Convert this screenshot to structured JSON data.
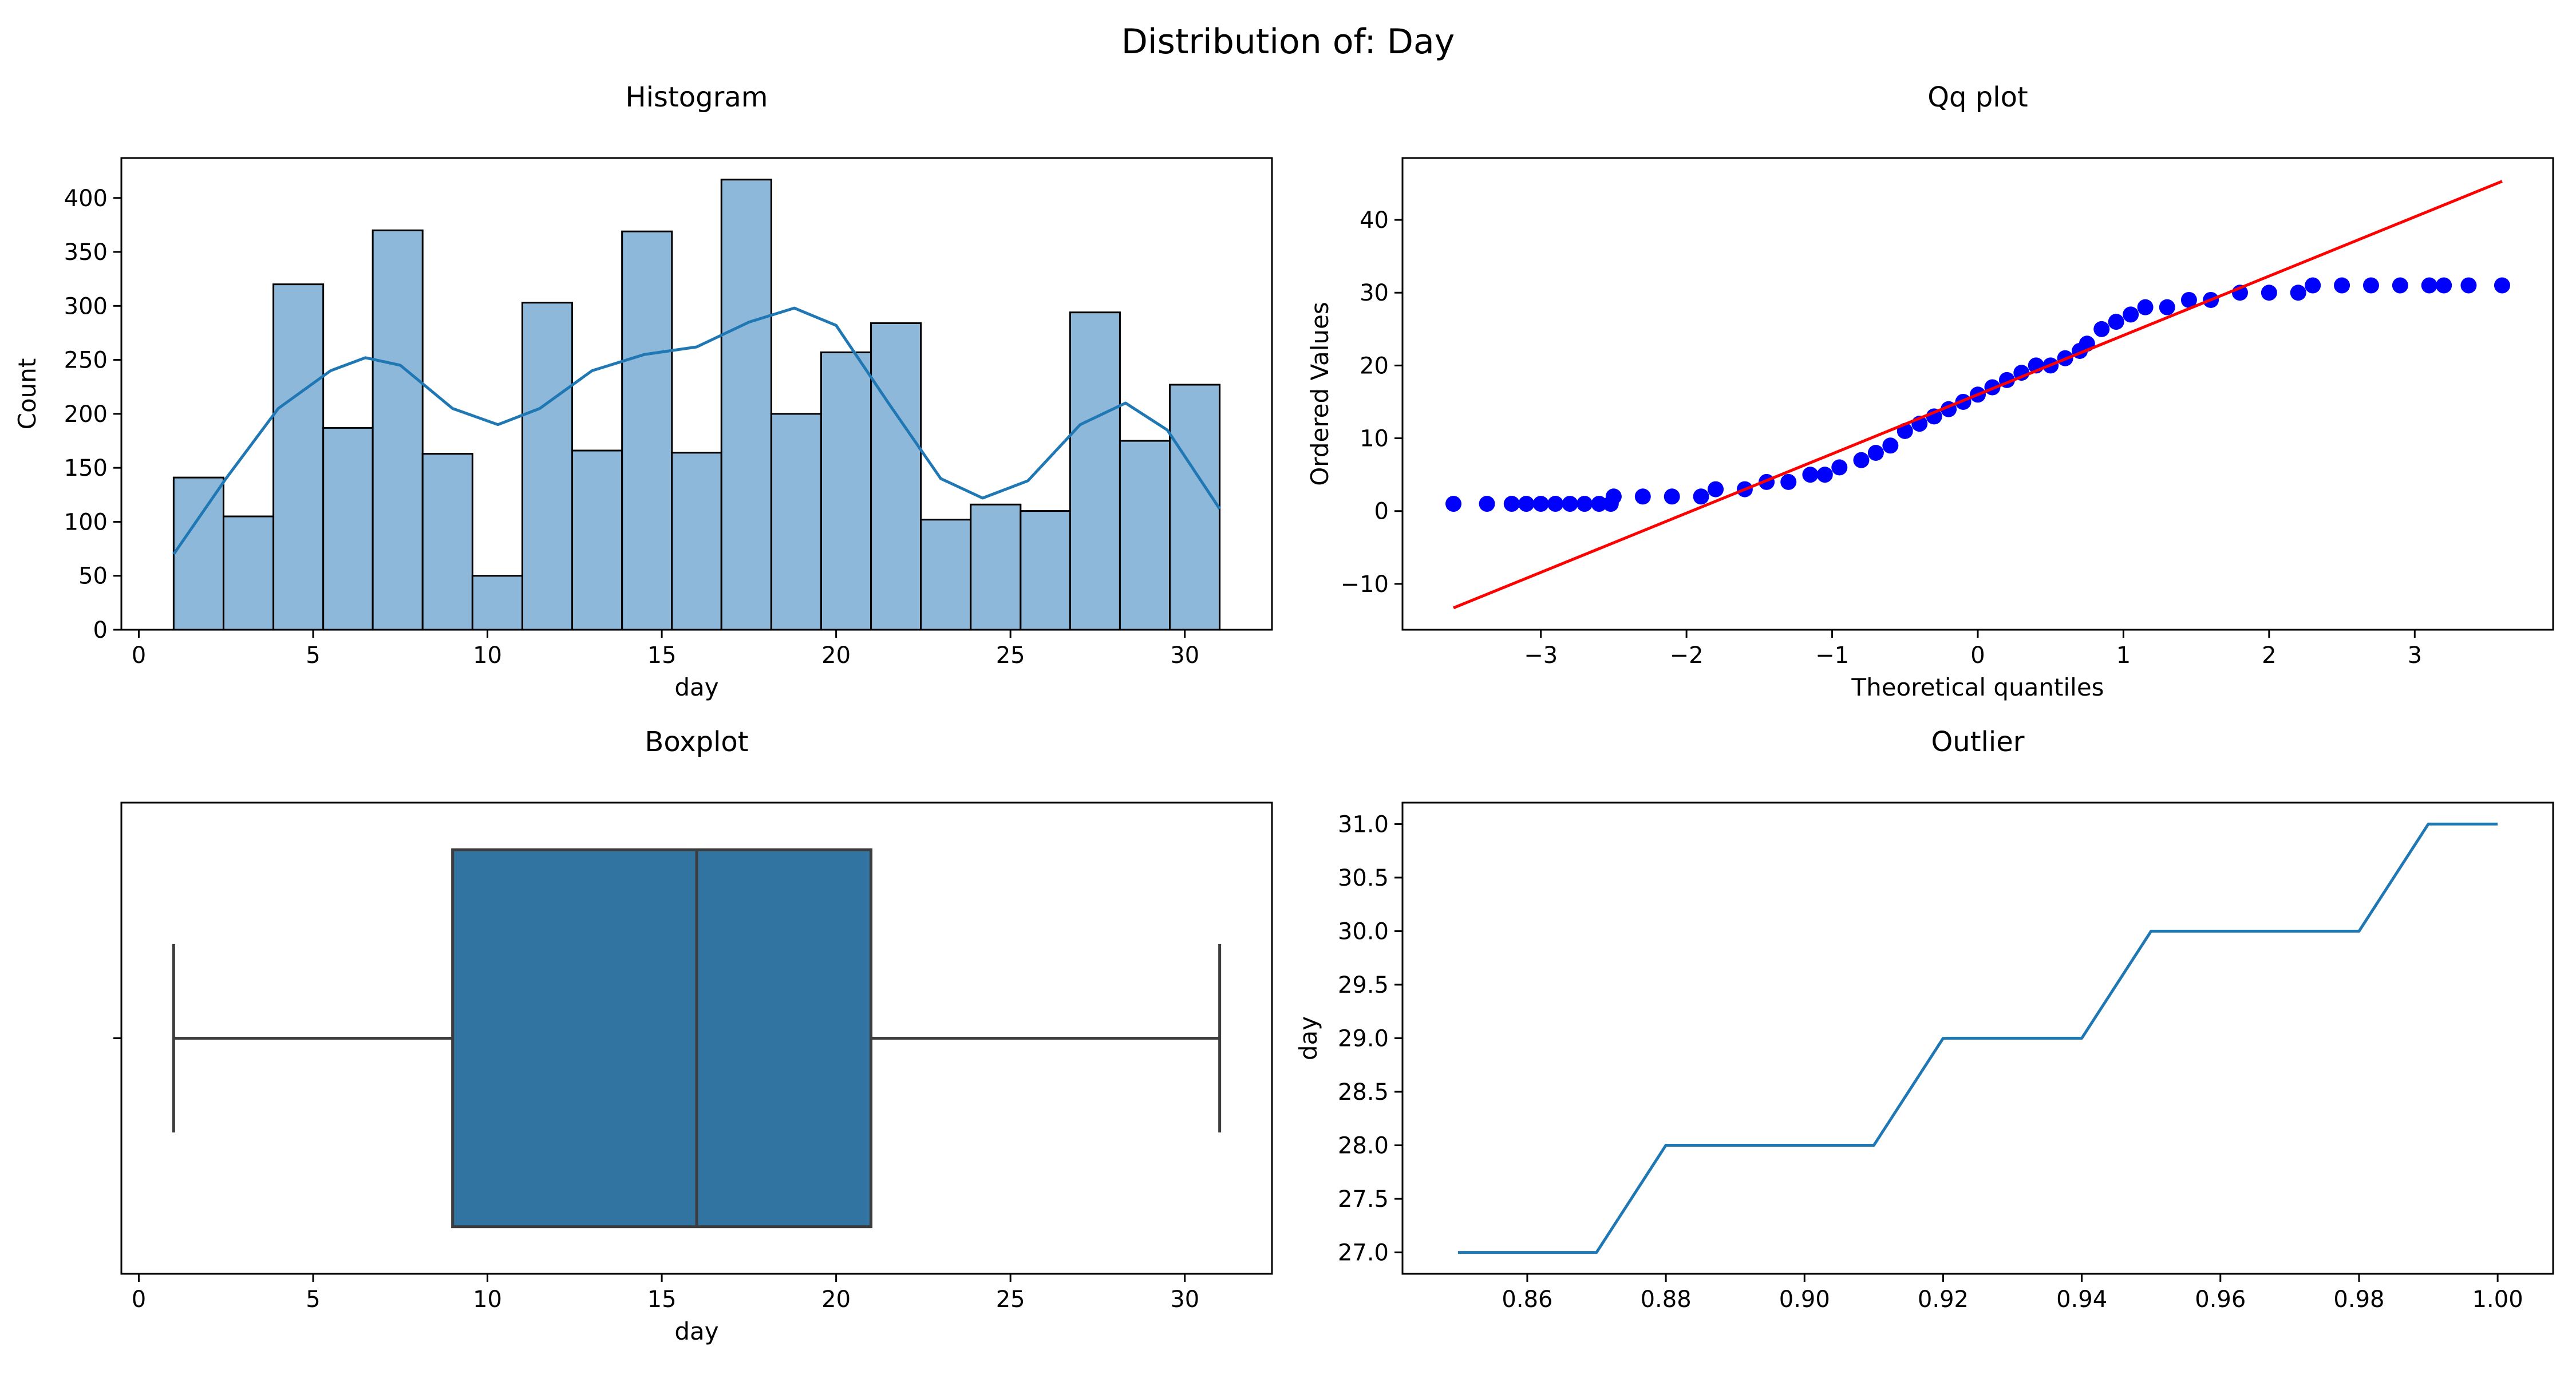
{
  "figure": {
    "suptitle": "Distribution of: Day"
  },
  "colors": {
    "hist_fill": "#8db8da",
    "kde_line": "#1f77b4",
    "box_fill": "#3274a1",
    "box_line": "#3d3d3d",
    "qq_points": "#0000ff",
    "qq_line": "#ff0000",
    "outlier_line": "#1f77b4"
  },
  "chart_data": [
    {
      "id": "histogram",
      "type": "bar",
      "title": "Histogram",
      "xlabel": "day",
      "ylabel": "Count",
      "xlim": [
        -0.5,
        32.5
      ],
      "ylim": [
        0,
        437
      ],
      "xticks": [
        0,
        5,
        10,
        15,
        20,
        25,
        30
      ],
      "yticks": [
        0,
        50,
        100,
        150,
        200,
        250,
        300,
        350,
        400
      ],
      "bin_edges": [
        1,
        2.43,
        3.86,
        5.29,
        6.71,
        8.14,
        9.57,
        11,
        12.43,
        13.86,
        15.29,
        16.71,
        18.14,
        19.57,
        21,
        22.43,
        23.86,
        25.29,
        26.71,
        28.14,
        29.57,
        31
      ],
      "values": [
        141,
        105,
        320,
        187,
        370,
        163,
        50,
        303,
        166,
        369,
        164,
        417,
        200,
        257,
        284,
        102,
        116,
        110,
        294,
        175,
        227
      ],
      "kde": {
        "x": [
          1,
          2.5,
          4,
          5.5,
          6.5,
          7.5,
          9,
          10.3,
          11.5,
          13,
          14.5,
          16,
          17.5,
          18.8,
          20,
          21.5,
          23,
          24.2,
          25.5,
          27,
          28.3,
          29.5,
          31
        ],
        "y": [
          70,
          140,
          205,
          240,
          252,
          245,
          205,
          190,
          205,
          240,
          255,
          262,
          285,
          298,
          282,
          210,
          140,
          122,
          138,
          190,
          210,
          185,
          112
        ]
      }
    },
    {
      "id": "qqplot",
      "type": "scatter",
      "title": "Qq plot",
      "xlabel": "Theoretical quantiles",
      "ylabel": "Ordered Values",
      "xlim": [
        -3.95,
        3.95
      ],
      "ylim": [
        -16.3,
        48.5
      ],
      "xticks": [
        -3,
        -2,
        -1,
        0,
        1,
        2,
        3
      ],
      "yticks": [
        -10,
        0,
        10,
        20,
        30,
        40
      ],
      "fit_line": {
        "x": [
          -3.6,
          3.6
        ],
        "y": [
          -13.3,
          45.3
        ]
      },
      "points_x": [
        -3.6,
        -3.37,
        -3.2,
        -3.1,
        -3.0,
        -2.9,
        -2.8,
        -2.7,
        -2.6,
        -2.52,
        -2.5,
        -2.3,
        -2.1,
        -1.9,
        -1.8,
        -1.6,
        -1.45,
        -1.3,
        -1.15,
        -1.05,
        -0.95,
        -0.8,
        -0.7,
        -0.6,
        -0.5,
        -0.4,
        -0.3,
        -0.2,
        -0.1,
        0,
        0.1,
        0.2,
        0.3,
        0.4,
        0.5,
        0.6,
        0.7,
        0.75,
        0.85,
        0.95,
        1.05,
        1.15,
        1.3,
        1.45,
        1.6,
        1.8,
        2.0,
        2.2,
        2.3,
        2.5,
        2.7,
        2.9,
        3.1,
        3.2,
        3.37,
        3.6
      ],
      "points_y": [
        1,
        1,
        1,
        1,
        1,
        1,
        1,
        1,
        1,
        1,
        2,
        2,
        2,
        2,
        3,
        3,
        4,
        4,
        5,
        5,
        6,
        7,
        8,
        9,
        11,
        12,
        13,
        14,
        15,
        16,
        17,
        18,
        19,
        20,
        20,
        21,
        22,
        23,
        25,
        26,
        27,
        28,
        28,
        29,
        29,
        30,
        30,
        30,
        31,
        31,
        31,
        31,
        31,
        31,
        31,
        31
      ]
    },
    {
      "id": "boxplot",
      "type": "box",
      "title": "Boxplot",
      "xlabel": "day",
      "xlim": [
        -0.5,
        32.5
      ],
      "xticks": [
        0,
        5,
        10,
        15,
        20,
        25,
        30
      ],
      "min": 1,
      "q1": 9,
      "median": 16,
      "q3": 21,
      "max": 31
    },
    {
      "id": "outlier",
      "type": "line",
      "title": "Outlier",
      "ylabel": "day",
      "xlim": [
        0.842,
        1.008
      ],
      "ylim": [
        26.8,
        31.2
      ],
      "xticks": [
        0.86,
        0.88,
        0.9,
        0.92,
        0.94,
        0.96,
        0.98,
        1.0
      ],
      "xtick_labels": [
        "0.86",
        "0.88",
        "0.90",
        "0.92",
        "0.94",
        "0.96",
        "0.98",
        "1.00"
      ],
      "yticks": [
        27.0,
        27.5,
        28.0,
        28.5,
        29.0,
        29.5,
        30.0,
        30.5,
        31.0
      ],
      "ytick_labels": [
        "27.0",
        "27.5",
        "28.0",
        "28.5",
        "29.0",
        "29.5",
        "30.0",
        "30.5",
        "31.0"
      ],
      "x": [
        0.85,
        0.86,
        0.87,
        0.88,
        0.89,
        0.9,
        0.91,
        0.92,
        0.93,
        0.94,
        0.95,
        0.96,
        0.97,
        0.98,
        0.99,
        1.0
      ],
      "y": [
        27,
        27,
        27,
        28,
        28,
        28,
        28,
        29,
        29,
        29,
        30,
        30,
        30,
        30,
        31,
        31
      ]
    }
  ]
}
